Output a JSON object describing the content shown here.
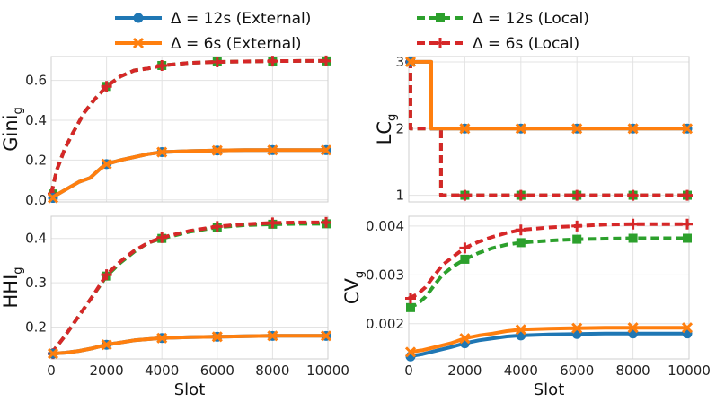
{
  "legend": {
    "items": [
      {
        "label": "Δ = 12s (External)",
        "color": "#1f77b4",
        "dash": "solid",
        "marker": "circle"
      },
      {
        "label": "Δ = 6s (External)",
        "color": "#ff7f0e",
        "dash": "solid",
        "marker": "x"
      },
      {
        "label": "Δ = 12s (Local)",
        "color": "#2ca02c",
        "dash": "dashed",
        "marker": "square"
      },
      {
        "label": "Δ = 6s (Local)",
        "color": "#d62728",
        "dash": "dashed",
        "marker": "plus"
      }
    ]
  },
  "chart_data": [
    {
      "id": "gini",
      "type": "line",
      "ylabel": "Gini",
      "ylabel_sub": "g",
      "xlabel": "",
      "xlim": [
        0,
        10000
      ],
      "ylim": [
        -0.01,
        0.72
      ],
      "xticks": [
        0,
        2000,
        4000,
        6000,
        8000,
        10000
      ],
      "xtick_labels": [],
      "yticks": [
        0.0,
        0.2,
        0.4,
        0.6
      ],
      "ytick_labels": [
        "0.0",
        "0.2",
        "0.4",
        "0.6"
      ],
      "series": [
        {
          "name": "Δ = 12s (Local)",
          "x": [
            0,
            200,
            500,
            800,
            1200,
            1600,
            2000,
            2500,
            3000,
            3500,
            4000,
            5000,
            6000,
            7000,
            8000,
            9000,
            10000
          ],
          "y": [
            0.03,
            0.15,
            0.26,
            0.34,
            0.44,
            0.51,
            0.57,
            0.62,
            0.65,
            0.66,
            0.675,
            0.688,
            0.693,
            0.695,
            0.697,
            0.698,
            0.698
          ]
        },
        {
          "name": "Δ = 6s (Local)",
          "x": [
            0,
            200,
            500,
            800,
            1200,
            1600,
            2000,
            2500,
            3000,
            3500,
            4000,
            5000,
            6000,
            7000,
            8000,
            9000,
            10000
          ],
          "y": [
            0.03,
            0.15,
            0.26,
            0.34,
            0.44,
            0.51,
            0.57,
            0.62,
            0.65,
            0.66,
            0.675,
            0.688,
            0.693,
            0.695,
            0.697,
            0.698,
            0.698
          ]
        },
        {
          "name": "Δ = 12s (External)",
          "x": [
            0,
            500,
            1000,
            1400,
            1800,
            2000,
            2500,
            3000,
            3500,
            4000,
            5000,
            6000,
            7000,
            8000,
            9000,
            10000
          ],
          "y": [
            0.01,
            0.05,
            0.09,
            0.11,
            0.16,
            0.18,
            0.2,
            0.215,
            0.23,
            0.24,
            0.245,
            0.248,
            0.25,
            0.25,
            0.25,
            0.25
          ]
        },
        {
          "name": "Δ = 6s (External)",
          "x": [
            0,
            500,
            1000,
            1400,
            1800,
            2000,
            2500,
            3000,
            3500,
            4000,
            5000,
            6000,
            7000,
            8000,
            9000,
            10000
          ],
          "y": [
            0.01,
            0.05,
            0.09,
            0.11,
            0.16,
            0.18,
            0.2,
            0.215,
            0.23,
            0.24,
            0.245,
            0.248,
            0.25,
            0.25,
            0.25,
            0.25
          ]
        }
      ]
    },
    {
      "id": "lc",
      "type": "line",
      "ylabel": "LC",
      "ylabel_sub": "g",
      "xlabel": "",
      "xlim": [
        0,
        10000
      ],
      "ylim": [
        0.9,
        3.08
      ],
      "xticks": [
        0,
        2000,
        4000,
        6000,
        8000,
        10000
      ],
      "xtick_labels": [],
      "yticks": [
        1,
        2,
        3
      ],
      "ytick_labels": [
        "1",
        "2",
        "3"
      ],
      "series": [
        {
          "name": "Δ = 12s (Local)",
          "x": [
            0,
            60,
            60,
            1000,
            1000,
            1150,
            1150,
            10000
          ],
          "y": [
            3,
            3,
            2,
            2,
            2,
            2,
            1,
            1
          ]
        },
        {
          "name": "Δ = 6s (Local)",
          "x": [
            0,
            60,
            60,
            1150,
            1150,
            10000
          ],
          "y": [
            3,
            3,
            2,
            2,
            1,
            1
          ]
        },
        {
          "name": "Δ = 12s (External)",
          "x": [
            0,
            800,
            800,
            10000
          ],
          "y": [
            3,
            3,
            2,
            2
          ]
        },
        {
          "name": "Δ = 6s (External)",
          "x": [
            0,
            800,
            800,
            10000
          ],
          "y": [
            3,
            3,
            2,
            2
          ]
        }
      ]
    },
    {
      "id": "hhi",
      "type": "line",
      "ylabel": "HHI",
      "ylabel_sub": "g",
      "xlabel": "Slot",
      "xlim": [
        0,
        10000
      ],
      "ylim": [
        0.128,
        0.45
      ],
      "xticks": [
        0,
        2000,
        4000,
        6000,
        8000,
        10000
      ],
      "xtick_labels": [
        "0",
        "2000",
        "4000",
        "6000",
        "8000",
        "10000"
      ],
      "yticks": [
        0.2,
        0.3,
        0.4
      ],
      "ytick_labels": [
        "0.2",
        "0.3",
        "0.4"
      ],
      "series": [
        {
          "name": "Δ = 12s (Local)",
          "x": [
            0,
            500,
            1000,
            1500,
            2000,
            2500,
            3000,
            3500,
            4000,
            5000,
            6000,
            7000,
            8000,
            9000,
            10000
          ],
          "y": [
            0.14,
            0.18,
            0.225,
            0.27,
            0.315,
            0.345,
            0.37,
            0.39,
            0.4,
            0.415,
            0.425,
            0.43,
            0.432,
            0.433,
            0.433
          ]
        },
        {
          "name": "Δ = 6s (Local)",
          "x": [
            0,
            500,
            1000,
            1500,
            2000,
            2500,
            3000,
            3500,
            4000,
            5000,
            6000,
            7000,
            8000,
            9000,
            10000
          ],
          "y": [
            0.14,
            0.18,
            0.225,
            0.27,
            0.318,
            0.348,
            0.372,
            0.39,
            0.402,
            0.417,
            0.427,
            0.432,
            0.435,
            0.436,
            0.436
          ]
        },
        {
          "name": "Δ = 12s (External)",
          "x": [
            0,
            500,
            1000,
            1500,
            2000,
            3000,
            4000,
            5000,
            6000,
            7000,
            8000,
            9000,
            10000
          ],
          "y": [
            0.14,
            0.142,
            0.146,
            0.152,
            0.16,
            0.17,
            0.175,
            0.177,
            0.178,
            0.179,
            0.18,
            0.18,
            0.18
          ]
        },
        {
          "name": "Δ = 6s (External)",
          "x": [
            0,
            500,
            1000,
            1500,
            2000,
            3000,
            4000,
            5000,
            6000,
            7000,
            8000,
            9000,
            10000
          ],
          "y": [
            0.14,
            0.142,
            0.146,
            0.152,
            0.16,
            0.17,
            0.175,
            0.177,
            0.178,
            0.179,
            0.18,
            0.18,
            0.18
          ]
        }
      ]
    },
    {
      "id": "cv",
      "type": "line",
      "ylabel": "CV",
      "ylabel_sub": "g",
      "xlabel": "Slot",
      "xlim": [
        0,
        10000
      ],
      "ylim": [
        0.00128,
        0.0042
      ],
      "xticks": [
        0,
        2000,
        4000,
        6000,
        8000,
        10000
      ],
      "xtick_labels": [
        "0",
        "2000",
        "4000",
        "6000",
        "8000",
        "10000"
      ],
      "yticks": [
        0.002,
        0.003,
        0.004
      ],
      "ytick_labels": [
        "0.002",
        "0.003",
        "0.004"
      ],
      "series": [
        {
          "name": "Δ = 12s (Local)",
          "x": [
            0,
            300,
            600,
            900,
            1200,
            1600,
            2000,
            2500,
            3000,
            3500,
            4000,
            5000,
            6000,
            7000,
            8000,
            9000,
            10000
          ],
          "y": [
            0.00233,
            0.0024,
            0.00255,
            0.00278,
            0.003,
            0.00318,
            0.00332,
            0.00345,
            0.00355,
            0.00362,
            0.00366,
            0.0037,
            0.00373,
            0.00374,
            0.00375,
            0.00375,
            0.00375
          ]
        },
        {
          "name": "Δ = 6s (Local)",
          "x": [
            0,
            300,
            600,
            900,
            1200,
            1600,
            2000,
            2500,
            3000,
            3500,
            4000,
            5000,
            6000,
            7000,
            8000,
            9000,
            10000
          ],
          "y": [
            0.00252,
            0.0026,
            0.00275,
            0.00298,
            0.0032,
            0.00338,
            0.00355,
            0.00368,
            0.00378,
            0.00386,
            0.00392,
            0.00397,
            0.004,
            0.00403,
            0.00404,
            0.00404,
            0.00404
          ]
        },
        {
          "name": "Δ = 12s (External)",
          "x": [
            0,
            500,
            1000,
            1500,
            2000,
            2500,
            3000,
            3500,
            4000,
            5000,
            6000,
            7000,
            8000,
            9000,
            10000
          ],
          "y": [
            0.00133,
            0.00138,
            0.00145,
            0.00152,
            0.0016,
            0.00166,
            0.0017,
            0.00174,
            0.00176,
            0.00178,
            0.00179,
            0.0018,
            0.0018,
            0.0018,
            0.0018
          ]
        },
        {
          "name": "Δ = 6s (External)",
          "x": [
            0,
            500,
            1000,
            1500,
            2000,
            2500,
            3000,
            3500,
            4000,
            5000,
            6000,
            7000,
            8000,
            9000,
            10000
          ],
          "y": [
            0.00142,
            0.00146,
            0.00153,
            0.0016,
            0.0017,
            0.00176,
            0.0018,
            0.00185,
            0.00188,
            0.0019,
            0.00191,
            0.00192,
            0.00192,
            0.00192,
            0.00192
          ]
        }
      ]
    }
  ]
}
